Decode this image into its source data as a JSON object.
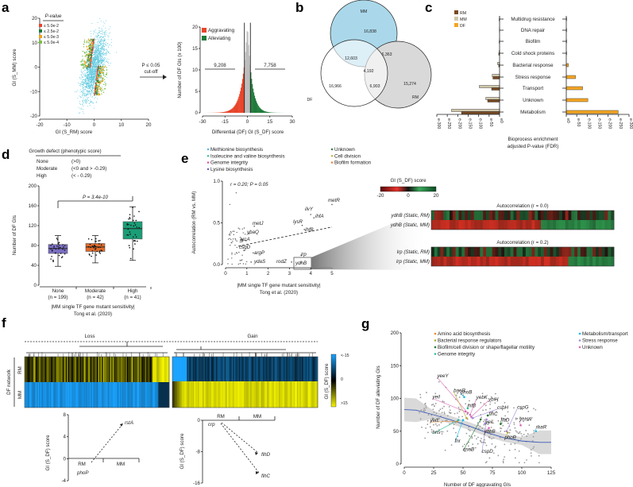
{
  "panels": {
    "a": "a",
    "b": "b",
    "c": "c",
    "d": "d",
    "e": "e",
    "f": "f",
    "g": "g"
  },
  "colors": {
    "red": "#e8442a",
    "green": "#1f7a3a",
    "orange": "#f2a31a",
    "lightgreen": "#7cc04a",
    "cyan": "#5ec8de",
    "grey": "#bdbdbd",
    "rm": "#7a4a22",
    "mm": "#cfc6aa",
    "df": "#f5a623",
    "blue": "#1aa3ff",
    "yellow": "#f5f500"
  },
  "a": {
    "arrow_p": "P ≤ 0.05",
    "arrow_cut": "cut-off"
  },
  "chart_data": [
    {
      "id": "a-scatter",
      "type": "scatter",
      "xlabel": "GI (S_RM) score",
      "ylabel": "GI (S_MM) score",
      "xlim": [
        -20,
        20
      ],
      "ylim": [
        -20,
        20
      ],
      "xticks": [
        "-20",
        "-10",
        "0",
        "10",
        "20"
      ],
      "yticks": [
        "-20",
        "-10",
        "0",
        "10",
        "20"
      ],
      "legend_title": "P-value",
      "legend": [
        "≤ 5.0e-2",
        "≤ 2.5e-2",
        "≤ 5.0e-3",
        "≤ 5.0e-4"
      ],
      "legend_position": "top-left"
    },
    {
      "id": "a-histogram",
      "type": "bar",
      "xlabel": "Differential (DF) GI (S_DF) score",
      "ylabel": "Number of DF GIs (x 100)",
      "xlim": [
        -30,
        30
      ],
      "ylim": [
        0,
        20
      ],
      "xticks": [
        "-30",
        "-15",
        "0",
        "15",
        "30"
      ],
      "yticks": [
        "0",
        "5",
        "10",
        "15",
        "20"
      ],
      "legend": [
        "Aggravating",
        "Alleviating"
      ],
      "counts": {
        "aggravating": "9,208",
        "alleviating": "7,758"
      },
      "cutoffs": [
        -2,
        2
      ]
    },
    {
      "id": "b-venn",
      "type": "venn",
      "sets": [
        "MM",
        "DF",
        "RM"
      ],
      "regions": {
        "MM_only": "16,838",
        "DF_only": "16,966",
        "RM_only": "15,274",
        "MM_DF": "12,603",
        "MM_RM": "6,363",
        "DF_RM": "6,903",
        "all": "4,192"
      }
    },
    {
      "id": "c-enrichment",
      "type": "bar",
      "legend": [
        "RM",
        "MM",
        "DF"
      ],
      "categories": [
        "Multidrug resistance",
        "DNA repair",
        "Biofilm",
        "Cold shock proteins",
        "Bacterial response",
        "Stress response",
        "Transport",
        "Unknown",
        "Metabolism"
      ],
      "series": [
        {
          "name": "RM",
          "values": [
            2,
            1,
            2,
            4,
            4,
            32,
            38,
            57,
            182
          ]
        },
        {
          "name": "MM",
          "values": [
            1,
            1,
            1,
            2,
            10,
            35,
            97,
            66,
            230
          ]
        },
        {
          "name": "DF",
          "values": [
            2,
            2,
            2,
            2,
            10,
            44,
            78,
            103,
            248
          ]
        }
      ],
      "xticks": [
        "e-300",
        "e-250",
        "e-200",
        "e-150",
        "e-100",
        "e-50",
        "e0"
      ],
      "xticks_right": [
        "e0",
        "e-50",
        "e-100",
        "e-150",
        "e-200",
        "e-250",
        "e-300"
      ],
      "xlabel_1": "Bioprocess enrichment",
      "xlabel_2": "adjusted P-value (FDR)"
    },
    {
      "id": "d-box",
      "type": "box",
      "title": "Growth defect (phenotypic score)",
      "definitions": [
        [
          "None",
          "(>0)"
        ],
        [
          "Moderate",
          "(<0 and > -0.29)"
        ],
        [
          "High",
          "(< - 0.29)"
        ]
      ],
      "ylabel": "Number of DF GIs",
      "ylim": [
        0,
        200
      ],
      "yticks": [
        "0",
        "40",
        "80",
        "120",
        "160",
        "200"
      ],
      "pvalue": "P = 3.4e-10",
      "groups": [
        {
          "name": "None",
          "n": "(n = 199)",
          "min": 38,
          "q1": 64,
          "median": 74,
          "q3": 82,
          "max": 100,
          "color": "#7b6fc4"
        },
        {
          "name": "Moderate",
          "n": "(n = 42)",
          "min": 45,
          "q1": 68,
          "median": 77,
          "q3": 84,
          "max": 100,
          "color": "#e06b2b"
        },
        {
          "name": "High",
          "n": "(n = 41)",
          "min": 50,
          "q1": 93,
          "median": 114,
          "q3": 128,
          "max": 158,
          "color": "#1a9e77"
        }
      ],
      "xlabel_1": "|MM single TF gene mutant sensitivity|",
      "xlabel_2": "Tong et al. (2020)"
    },
    {
      "id": "e-scatter",
      "type": "scatter",
      "legend": [
        {
          "label": "Methionine biosynthesis",
          "color": "#4fb3e8"
        },
        {
          "label": "Isoleucine and valine biosynthesis",
          "color": "#2bbf9a"
        },
        {
          "label": "Genome integrity",
          "color": "#e8409a"
        },
        {
          "label": "Lysine biosynthesis",
          "color": "#5a5ab8"
        },
        {
          "label": "Unknown",
          "color": "#2f7a3a"
        },
        {
          "label": "Cell division",
          "color": "#c8a82a"
        },
        {
          "label": "Biofilm formation",
          "color": "#f07a2a"
        }
      ],
      "stat": "r = 0.20; P = 0.05",
      "ylabel": "Autocorrelation (RM vs. MM)",
      "xlim": [
        0,
        5
      ],
      "ylim": [
        0,
        1
      ],
      "xticks": [
        "0",
        "1",
        "2",
        "3",
        "4",
        "5"
      ],
      "yticks": [
        "0.0",
        "0.5",
        "1.0"
      ],
      "xlabel_1": "|MM single TF gene mutant sensitivity|",
      "xlabel_2": "Tong et al. (2020)",
      "genes": [
        {
          "name": "metR",
          "x": 5.0,
          "y": 0.72,
          "color": "#4fb3e8"
        },
        {
          "name": "ilvY",
          "x": 4.0,
          "y": 0.6,
          "color": "#2bbf9a"
        },
        {
          "name": "ihfA",
          "x": 4.15,
          "y": 0.56,
          "color": "#e8409a"
        },
        {
          "name": "lysR",
          "x": 3.6,
          "y": 0.47,
          "color": "#5a5ab8"
        },
        {
          "name": "ihfB",
          "x": 3.7,
          "y": 0.42,
          "color": "#e8409a"
        },
        {
          "name": "metJ",
          "x": 1.35,
          "y": 0.46,
          "color": "#4fb3e8"
        },
        {
          "name": "ybaQ",
          "x": 1.1,
          "y": 0.37,
          "color": "#2f7a3a"
        },
        {
          "name": "arcA",
          "x": 0.8,
          "y": 0.3,
          "color": "#7cc04a"
        },
        {
          "name": "csgD",
          "x": 0.75,
          "y": 0.22,
          "color": "#f07a2a"
        },
        {
          "name": "argP",
          "x": 1.3,
          "y": 0.14,
          "color": "#e8409a"
        },
        {
          "name": "ydaS",
          "x": 1.2,
          "y": 0.03,
          "color": "#2f7a3a"
        },
        {
          "name": "rodZ",
          "x": 3.1,
          "y": 0.03,
          "color": "#c8a82a"
        },
        {
          "name": "lrp",
          "x": 3.55,
          "y": 0.11,
          "color": "#e8409a"
        },
        {
          "name": "ydhB",
          "x": 3.55,
          "y": 0.02,
          "color": "#2f7a3a"
        }
      ]
    },
    {
      "id": "e-heatmap",
      "type": "heatmap",
      "colorbar_title": "GI (S_DF) score",
      "colorbar_ticks": [
        "-20",
        "0",
        "20"
      ],
      "blocks": [
        {
          "title": "Autocorrelation (r = 0.0)",
          "rows": [
            "ydhB (Static, RM)",
            "ydhB (Static, MM)"
          ]
        },
        {
          "title": "Autocorrelation (r = 0.2)",
          "rows": [
            "lrp (Static, RM)",
            "lrp (Static, MM)"
          ]
        }
      ]
    },
    {
      "id": "f-heatmap",
      "type": "heatmap",
      "clusters": [
        "Loss",
        "Gain"
      ],
      "rows": [
        "RM",
        "MM"
      ],
      "row_group": "DF network",
      "colorbar_title": "GI (S_DF) score",
      "colorbar_ticks": [
        "<-15",
        "0",
        ">15"
      ]
    },
    {
      "id": "f-lines",
      "type": "line",
      "ylabel": "GI (S_DF) score",
      "plots": [
        {
          "ylim": [
            -4,
            8
          ],
          "yticks": [
            "8",
            "4",
            "0",
            "-4"
          ],
          "x": [
            "RM",
            "MM"
          ],
          "genes": [
            {
              "name": "phoP",
              "RM": -1
            },
            {
              "name": "rstA",
              "MM": 5.5
            }
          ]
        },
        {
          "ylim": [
            -16,
            0
          ],
          "yticks": [
            "0",
            "-8",
            "-16"
          ],
          "x": [
            "RM",
            "MM"
          ],
          "genes": [
            {
              "name": "crp",
              "RM": 0
            },
            {
              "name": "flhD",
              "MM": -9
            },
            {
              "name": "flhC",
              "MM": -14
            }
          ]
        }
      ]
    },
    {
      "id": "g-scatter",
      "type": "scatter",
      "xlabel": "Number of DF aggravating GIs",
      "ylabel": "Number of DF alleviating GIs",
      "xlim": [
        0,
        125
      ],
      "ylim": [
        0,
        200
      ],
      "xticks": [
        "0",
        "25",
        "50",
        "75",
        "100",
        "125"
      ],
      "yticks": [
        "0",
        "50",
        "100",
        "150",
        "200"
      ],
      "legend": [
        {
          "label": "Amino acid biosynthesis",
          "color": "#f08a2a"
        },
        {
          "label": "Bacterial response regulators",
          "color": "#b8a82a"
        },
        {
          "label": "Biofilm/cell division or shape/flagellar motility",
          "color": "#1f7a2a"
        },
        {
          "label": "Genome integrity",
          "color": "#2bbf9a"
        },
        {
          "label": "Metabolism/transport",
          "color": "#1ab8e8"
        },
        {
          "label": "Stress response",
          "color": "#a08ad8"
        },
        {
          "label": "Unknown",
          "color": "#d86ab8"
        }
      ],
      "trend": [
        [
          0,
          83
        ],
        [
          10,
          82
        ],
        [
          25,
          75
        ],
        [
          40,
          67
        ],
        [
          55,
          58
        ],
        [
          70,
          48
        ],
        [
          85,
          40
        ],
        [
          100,
          35
        ],
        [
          115,
          33
        ],
        [
          125,
          33
        ]
      ],
      "genes": [
        {
          "name": "yeeY",
          "x": 54,
          "y": 78,
          "color": "#d86ab8",
          "lx": 28,
          "ly": 132
        },
        {
          "name": "baeR",
          "x": 53,
          "y": 70,
          "color": "#b8a82a",
          "lx": 42,
          "ly": 110
        },
        {
          "name": "phoB",
          "x": 51,
          "y": 102,
          "color": "#1ab8e8",
          "lx": 52,
          "ly": 105
        },
        {
          "name": "yeiI",
          "x": 52,
          "y": 80,
          "color": "#d86ab8",
          "lx": 24,
          "ly": 100
        },
        {
          "name": "ihfB",
          "x": 54,
          "y": 85,
          "color": "#2bbf9a",
          "lx": 55,
          "ly": 88
        },
        {
          "name": "yebK",
          "x": 56,
          "y": 75,
          "color": "#d86ab8",
          "lx": 60,
          "ly": 98
        },
        {
          "name": "ybiH",
          "x": 57,
          "y": 72,
          "color": "#d86ab8",
          "lx": 73,
          "ly": 93
        },
        {
          "name": "cspH",
          "x": 58,
          "y": 70,
          "color": "#a08ad8",
          "lx": 79,
          "ly": 86
        },
        {
          "name": "cspG",
          "x": 87,
          "y": 50,
          "color": "#a08ad8",
          "lx": 96,
          "ly": 84
        },
        {
          "name": "flhC",
          "x": 71,
          "y": 74,
          "color": "#1f7a2a",
          "lx": 72,
          "ly": 74
        },
        {
          "name": "flhD",
          "x": 82,
          "y": 61,
          "color": "#1f7a2a",
          "lx": 82,
          "ly": 65
        },
        {
          "name": "yhhW",
          "x": 99,
          "y": 59,
          "color": "#d86ab8",
          "lx": 98,
          "ly": 66
        },
        {
          "name": "rhaR",
          "x": 112,
          "y": 50,
          "color": "#1ab8e8",
          "lx": 112,
          "ly": 54
        },
        {
          "name": "yeiE",
          "x": 45,
          "y": 65,
          "color": "#f08a2a",
          "lx": 22,
          "ly": 64
        },
        {
          "name": "hns",
          "x": 46,
          "y": 67,
          "color": "#2bbf9a",
          "lx": 24,
          "ly": 46
        },
        {
          "name": "fnr",
          "x": 50,
          "y": 67,
          "color": "#1ab8e8",
          "lx": 43,
          "ly": 33
        },
        {
          "name": "qseB",
          "x": 65,
          "y": 68,
          "color": "#1f7a2a",
          "lx": 50,
          "ly": 20
        },
        {
          "name": "cspD",
          "x": 70,
          "y": 68,
          "color": "#a08ad8",
          "lx": 66,
          "ly": 17
        },
        {
          "name": "yeiL",
          "x": 69,
          "y": 62,
          "color": "#a08ad8",
          "lx": 69,
          "ly": 62
        },
        {
          "name": "ydhB",
          "x": 72,
          "y": 55,
          "color": "#d86ab8",
          "lx": 72,
          "ly": 47
        },
        {
          "name": "phoP",
          "x": 88,
          "y": 48,
          "color": "#b8a82a",
          "lx": 82,
          "ly": 42
        }
      ]
    }
  ]
}
